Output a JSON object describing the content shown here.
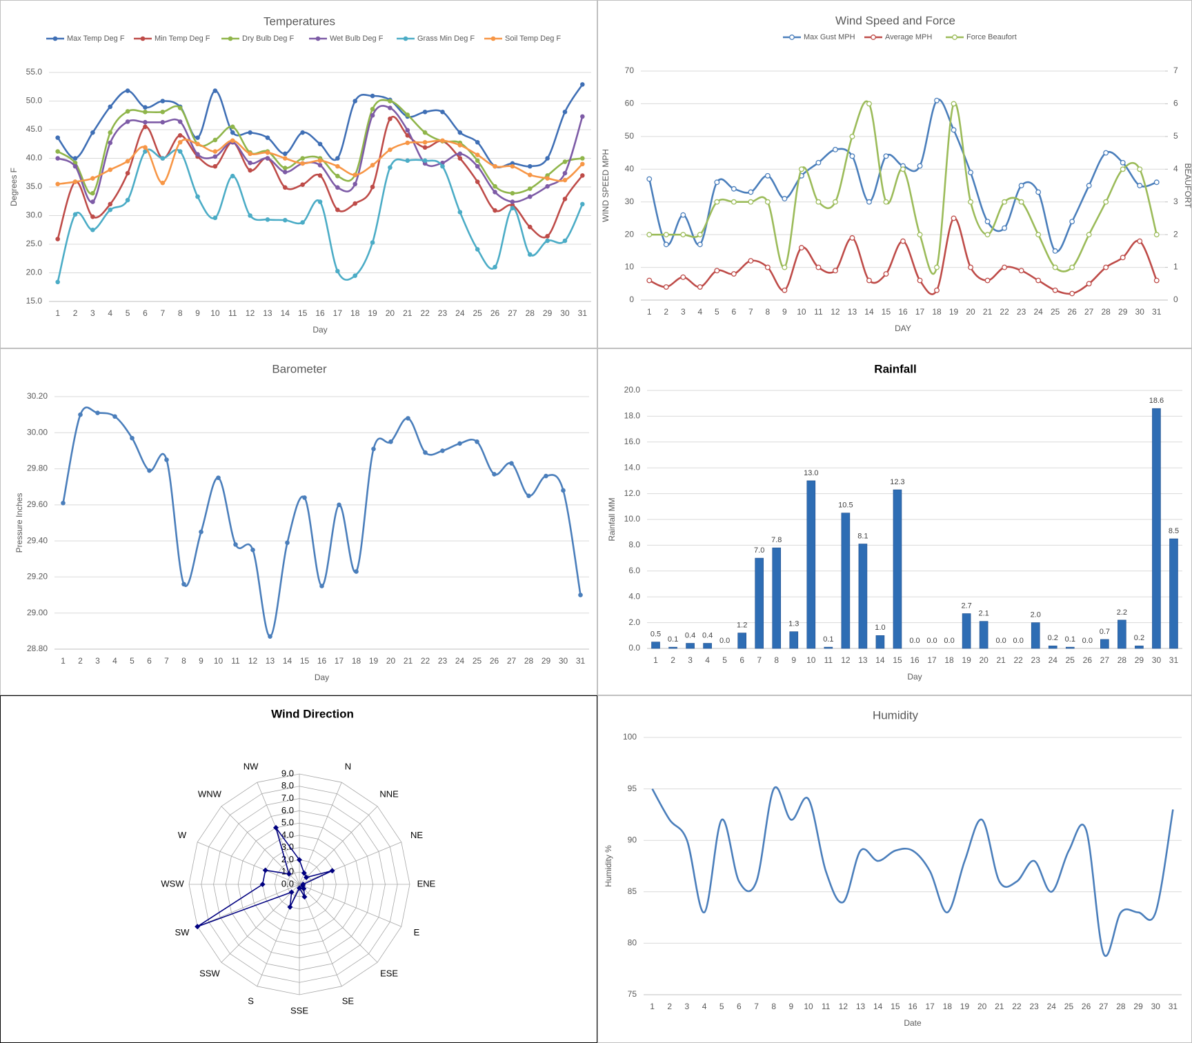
{
  "chart_data": [
    {
      "type": "line",
      "title": "Temperatures",
      "x_label": "Day",
      "y_label": "Degrees F",
      "smooth": true,
      "marker": "dot",
      "grid": true,
      "legend": "top",
      "categories": [
        1,
        2,
        3,
        4,
        5,
        6,
        7,
        8,
        9,
        10,
        11,
        12,
        13,
        14,
        15,
        16,
        17,
        18,
        19,
        20,
        21,
        22,
        23,
        24,
        25,
        26,
        27,
        28,
        29,
        30,
        31
      ],
      "ylim": [
        15,
        55
      ],
      "yticks": [
        {
          "value": 15,
          "label": "15.0"
        },
        {
          "value": 20,
          "label": "20.0"
        },
        {
          "value": 25,
          "label": "25.0"
        },
        {
          "value": 30,
          "label": "30.0"
        },
        {
          "value": 35,
          "label": "35.0"
        },
        {
          "value": 40,
          "label": "40.0"
        },
        {
          "value": 45,
          "label": "45.0"
        },
        {
          "value": 50,
          "label": "50.0"
        },
        {
          "value": 55,
          "label": "55.0"
        }
      ],
      "series": [
        {
          "name": "Max Temp Deg F",
          "color": "#3f6fb5",
          "values": [
            43.6,
            40,
            44.5,
            49,
            51.8,
            48.9,
            50,
            49,
            43.6,
            51.8,
            44.5,
            44.5,
            43.6,
            40.8,
            44.5,
            42.5,
            40,
            50,
            50.9,
            50.2,
            47.3,
            48.1,
            48.1,
            44.5,
            42.8,
            38.6,
            39.1,
            38.6,
            40,
            48.1,
            52.9
          ]
        },
        {
          "name": "Min Temp Deg F",
          "color": "#be4b48",
          "values": [
            25.9,
            35.9,
            29.8,
            32,
            37.4,
            45.5,
            40,
            44,
            40.3,
            38.6,
            42.8,
            37.9,
            40,
            34.9,
            35.4,
            37,
            31,
            32.1,
            35,
            46.9,
            44,
            41.9,
            43,
            40,
            35.9,
            30.9,
            31.8,
            28,
            26.4,
            32.9,
            37
          ]
        },
        {
          "name": "Dry Bulb Deg F",
          "color": "#8fb54a",
          "values": [
            41.2,
            39.2,
            33.9,
            44.5,
            48.2,
            48.1,
            48.1,
            48.8,
            42.5,
            43.2,
            45.5,
            41,
            41.2,
            38.3,
            40,
            40,
            36.9,
            37.1,
            48.6,
            50,
            47.6,
            44.5,
            43,
            42.7,
            39.6,
            35.1,
            33.9,
            34.7,
            37,
            39.4,
            40
          ]
        },
        {
          "name": "Wet Bulb Deg F",
          "color": "#7d5ba6",
          "values": [
            40,
            38.6,
            32.4,
            42.7,
            46.4,
            46.3,
            46.3,
            46.4,
            40.7,
            40.3,
            42.8,
            39.2,
            40,
            37.6,
            39.1,
            38.8,
            34.9,
            35.5,
            47.5,
            48.8,
            44.9,
            39.1,
            39.2,
            40.8,
            38.6,
            34.1,
            32.4,
            33.3,
            35.1,
            37.4,
            47.3
          ]
        },
        {
          "name": "Grass Min Deg F",
          "color": "#4bacc6",
          "values": [
            18.4,
            30.2,
            27.5,
            31,
            32.7,
            41.2,
            40,
            41.2,
            33.3,
            29.6,
            36.9,
            30,
            29.3,
            29.2,
            28.8,
            32.4,
            20.3,
            19.5,
            25.3,
            38.4,
            39.6,
            39.6,
            38.6,
            30.6,
            24.1,
            21,
            31.3,
            23.2,
            25.6,
            25.6,
            32
          ]
        },
        {
          "name": "Soil Temp Deg F",
          "color": "#f79646",
          "values": [
            35.5,
            35.9,
            36.5,
            38,
            39.5,
            41.9,
            35.7,
            42.8,
            42.5,
            41.2,
            43.1,
            40.8,
            41,
            40,
            39.1,
            39.6,
            38.6,
            37.1,
            38.8,
            41.5,
            42.7,
            42.8,
            43.1,
            42.3,
            40.6,
            38.6,
            38.6,
            37.1,
            36.5,
            36.2,
            39
          ]
        }
      ]
    },
    {
      "type": "line",
      "title": "Wind Speed and Force",
      "x_label": "DAY",
      "y_label": "WIND SPEED MPH",
      "y2_label": "BEAUFORT",
      "smooth": true,
      "marker": "open-circle",
      "grid": true,
      "legend": "top",
      "categories": [
        1,
        2,
        3,
        4,
        5,
        6,
        7,
        8,
        9,
        10,
        11,
        12,
        13,
        14,
        15,
        16,
        17,
        18,
        19,
        20,
        21,
        22,
        23,
        24,
        25,
        26,
        27,
        28,
        29,
        30,
        31
      ],
      "ylim": [
        0,
        70
      ],
      "yticks": [
        0,
        10,
        20,
        30,
        40,
        50,
        60,
        70
      ],
      "y2lim": [
        0,
        7
      ],
      "y2ticks": [
        0,
        1,
        2,
        3,
        4,
        5,
        6,
        7
      ],
      "series": [
        {
          "name": "Max Gust MPH",
          "color": "#4a7ebb",
          "values": [
            37,
            17,
            26,
            17,
            36,
            34,
            33,
            38,
            31,
            38,
            42,
            46,
            44,
            30,
            44,
            41,
            41,
            61,
            52,
            39,
            24,
            22,
            35,
            33,
            15,
            24,
            35,
            45,
            42,
            35,
            36
          ]
        },
        {
          "name": "Average MPH",
          "color": "#be4b48",
          "values": [
            6,
            4,
            7,
            4,
            9,
            8,
            12,
            10,
            3,
            16,
            10,
            9,
            19,
            6,
            8,
            18,
            6,
            3,
            25,
            10,
            6,
            10,
            9,
            6,
            3,
            2,
            5,
            10,
            13,
            18,
            6
          ]
        },
        {
          "name": "Force Beaufort",
          "color": "#9bbb59",
          "axis": "y2",
          "values": [
            2,
            2,
            2,
            2,
            3,
            3,
            3,
            3,
            1,
            4,
            3,
            3,
            5,
            6,
            3,
            4,
            2,
            1,
            6,
            3,
            2,
            3,
            3,
            2,
            1,
            1,
            2,
            3,
            4,
            4,
            2
          ]
        }
      ]
    },
    {
      "type": "line",
      "title": "Barometer",
      "x_label": "Day",
      "y_label": "Pressure Inches",
      "smooth": true,
      "marker": "dot",
      "grid": true,
      "categories": [
        1,
        2,
        3,
        4,
        5,
        6,
        7,
        8,
        9,
        10,
        11,
        12,
        13,
        14,
        15,
        16,
        17,
        18,
        19,
        20,
        21,
        22,
        23,
        24,
        25,
        26,
        27,
        28,
        29,
        30,
        31
      ],
      "ylim": [
        28.8,
        30.2
      ],
      "yticks": [
        {
          "value": 28.8,
          "label": "28.80"
        },
        {
          "value": 29.0,
          "label": "29.00"
        },
        {
          "value": 29.2,
          "label": "29.20"
        },
        {
          "value": 29.4,
          "label": "29.40"
        },
        {
          "value": 29.6,
          "label": "29.60"
        },
        {
          "value": 29.8,
          "label": "29.80"
        },
        {
          "value": 30.0,
          "label": "30.00"
        },
        {
          "value": 30.2,
          "label": "30.20"
        }
      ],
      "series": [
        {
          "color": "#4a7ebb",
          "values": [
            29.61,
            30.1,
            30.11,
            30.09,
            29.97,
            29.79,
            29.85,
            29.16,
            29.45,
            29.75,
            29.38,
            29.35,
            28.87,
            29.39,
            29.64,
            29.15,
            29.6,
            29.23,
            29.91,
            29.95,
            30.08,
            29.89,
            29.9,
            29.94,
            29.95,
            29.77,
            29.83,
            29.65,
            29.76,
            29.68,
            29.1
          ]
        }
      ]
    },
    {
      "type": "bar",
      "title": "Rainfall",
      "x_label": "Day",
      "y_label": "Rainfall MM",
      "grid": true,
      "color": "#2e6db4",
      "categories": [
        1,
        2,
        3,
        4,
        5,
        6,
        7,
        8,
        9,
        10,
        11,
        12,
        13,
        14,
        15,
        16,
        17,
        18,
        19,
        20,
        21,
        22,
        23,
        24,
        25,
        26,
        27,
        28,
        29,
        30,
        31
      ],
      "ylim": [
        0,
        20
      ],
      "yticks": [
        {
          "value": 0,
          "label": "0.0"
        },
        {
          "value": 2,
          "label": "2.0"
        },
        {
          "value": 4,
          "label": "4.0"
        },
        {
          "value": 6,
          "label": "6.0"
        },
        {
          "value": 8,
          "label": "8.0"
        },
        {
          "value": 10,
          "label": "10.0"
        },
        {
          "value": 12,
          "label": "12.0"
        },
        {
          "value": 14,
          "label": "14.0"
        },
        {
          "value": 16,
          "label": "16.0"
        },
        {
          "value": 18,
          "label": "18.0"
        },
        {
          "value": 20,
          "label": "20.0"
        }
      ],
      "values": [
        0.5,
        0.1,
        0.4,
        0.4,
        0,
        1.2,
        7,
        7.8,
        1.3,
        13,
        0.1,
        10.5,
        8.1,
        1,
        12.3,
        0,
        0,
        0,
        2.7,
        2.1,
        0,
        0,
        2,
        0.2,
        0.1,
        0,
        0.7,
        2.2,
        0.2,
        18.6,
        8.5
      ],
      "value_labels": [
        "0.5",
        "0.1",
        "0.4",
        "0.4",
        "0.0",
        "1.2",
        "7.0",
        "7.8",
        "1.3",
        "13.0",
        "0.1",
        "10.5",
        "8.1",
        "1.0",
        "12.3",
        "0.0",
        "0.0",
        "0.0",
        "2.7",
        "2.1",
        "0.0",
        "0.0",
        "2.0",
        "0.2",
        "0.1",
        "0.0",
        "0.7",
        "2.2",
        "0.2",
        "18.6",
        "8.5"
      ]
    },
    {
      "type": "radar",
      "title": "Wind Direction",
      "color": "#000080",
      "marker": "diamond",
      "categories": [
        null,
        "N",
        "NNE",
        "NE",
        "ENE",
        "E",
        "ESE",
        "SE",
        "SSE",
        "S",
        "SSW",
        "SW",
        "WSW",
        "W",
        "WNW",
        "NW"
      ],
      "values": [
        2,
        1,
        0.8,
        2.9,
        0.3,
        0.3,
        0.5,
        1.1,
        0.3,
        2,
        0.9,
        9,
        3,
        3,
        1.2,
        5
      ],
      "rlim": [
        0,
        9
      ],
      "rticks": [
        {
          "value": 0,
          "label": "0.0"
        },
        {
          "value": 1,
          "label": "1.0"
        },
        {
          "value": 2,
          "label": "2.0"
        },
        {
          "value": 3,
          "label": "3.0"
        },
        {
          "value": 4,
          "label": "4.0"
        },
        {
          "value": 5,
          "label": "5.0"
        },
        {
          "value": 6,
          "label": "6.0"
        },
        {
          "value": 7,
          "label": "7.0"
        },
        {
          "value": 8,
          "label": "8.0"
        },
        {
          "value": 9,
          "label": "9.0"
        }
      ]
    },
    {
      "type": "line",
      "title": "Humidity",
      "x_label": "Date",
      "y_label": "Humidity %",
      "smooth": true,
      "marker": "none",
      "grid": true,
      "categories": [
        1,
        2,
        3,
        4,
        5,
        6,
        7,
        8,
        9,
        10,
        11,
        12,
        13,
        14,
        15,
        16,
        17,
        18,
        19,
        20,
        21,
        22,
        23,
        24,
        25,
        26,
        27,
        28,
        29,
        30,
        31
      ],
      "ylim": [
        75,
        100
      ],
      "yticks": [
        75,
        80,
        85,
        90,
        95,
        100
      ],
      "series": [
        {
          "color": "#4a7ebb",
          "values": [
            95,
            92,
            90,
            83,
            92,
            86,
            86,
            95,
            92,
            94,
            87,
            84,
            89,
            88,
            89,
            89,
            87,
            83,
            88,
            92,
            86,
            86,
            88,
            85,
            89,
            91,
            79,
            83,
            83,
            83,
            93
          ]
        }
      ]
    }
  ]
}
